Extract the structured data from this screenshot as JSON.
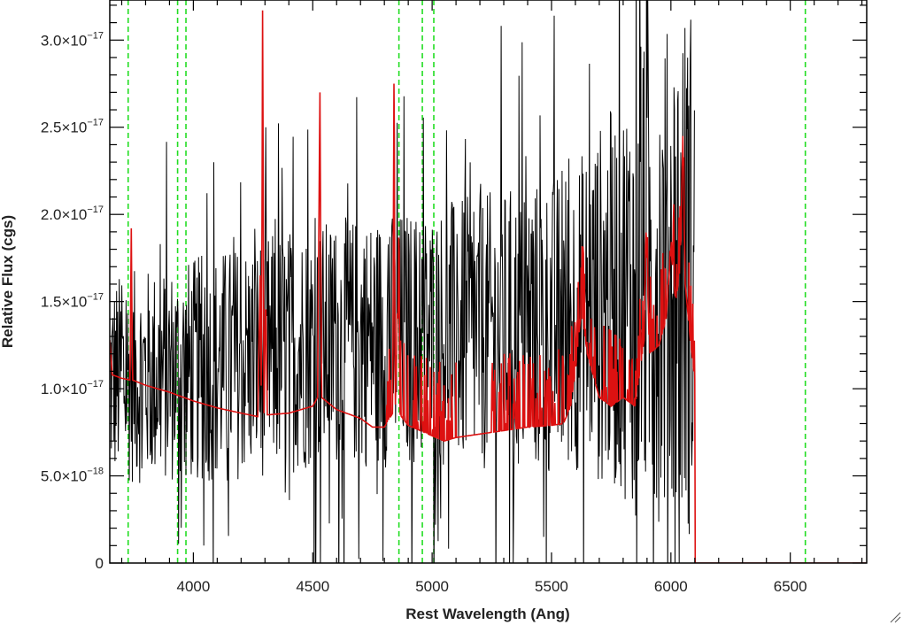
{
  "chart_data": {
    "type": "line",
    "xlabel": "Rest Wavelength (Ang)",
    "ylabel": "Relative Flux (cgs)",
    "xlim": [
      3650,
      6820
    ],
    "ylim": [
      0,
      3.23e-17
    ],
    "x_ticks": [
      4000,
      4500,
      5000,
      5500,
      6000,
      6500
    ],
    "x_tick_labels": [
      "4000",
      "4500",
      "5000",
      "5500",
      "6000",
      "6500"
    ],
    "y_ticks": [
      {
        "value": 0,
        "mantissa": "0",
        "exponent": ""
      },
      {
        "value": 5e-18,
        "mantissa": "5.0×10",
        "exponent": "−18"
      },
      {
        "value": 1e-17,
        "mantissa": "1.0×10",
        "exponent": "−17"
      },
      {
        "value": 1.5e-17,
        "mantissa": "1.5×10",
        "exponent": "−17"
      },
      {
        "value": 2e-17,
        "mantissa": "2.0×10",
        "exponent": "−17"
      },
      {
        "value": 2.5e-17,
        "mantissa": "2.5×10",
        "exponent": "−17"
      },
      {
        "value": 3e-17,
        "mantissa": "3.0×10",
        "exponent": "−17"
      }
    ],
    "series": [
      {
        "color": "#000000",
        "style": "noisy observed spectrum",
        "x_range": [
          3650,
          6100
        ],
        "continuum": [
          [
            3650,
            1.05e-17
          ],
          [
            4000,
            1.1e-17
          ],
          [
            4500,
            1.25e-17
          ],
          [
            5000,
            1.3e-17
          ],
          [
            5500,
            1.35e-17
          ],
          [
            5800,
            1.55e-17
          ],
          [
            6100,
            1.7e-17
          ]
        ],
        "noise_amplitude": [
          [
            3650,
            6e-18
          ],
          [
            4300,
            7e-18
          ],
          [
            5000,
            7.5e-18
          ],
          [
            5600,
            9e-18
          ],
          [
            6100,
            1.6e-17
          ]
        ]
      },
      {
        "color": "#dd1111",
        "style": "model / sky spectrum",
        "points": [
          [
            3650,
            1.28e-17
          ],
          [
            3660,
            1.08e-17
          ],
          [
            3700,
            1.06e-17
          ],
          [
            3735,
            1.05e-17
          ],
          [
            3740,
            1.92e-17
          ],
          [
            3745,
            1.05e-17
          ],
          [
            3800,
            1.02e-17
          ],
          [
            3900,
            9.8e-18
          ],
          [
            4000,
            9.3e-18
          ],
          [
            4100,
            8.9e-18
          ],
          [
            4200,
            8.6e-18
          ],
          [
            4270,
            8.4e-18
          ],
          [
            4280,
            1.65e-17
          ],
          [
            4285,
            8.6e-18
          ],
          [
            4290,
            3.17e-17
          ],
          [
            4296,
            8.6e-18
          ],
          [
            4303,
            1.55e-17
          ],
          [
            4310,
            8.5e-18
          ],
          [
            4400,
            8.6e-18
          ],
          [
            4500,
            9e-18
          ],
          [
            4520,
            9.5e-18
          ],
          [
            4530,
            2.7e-17
          ],
          [
            4537,
            9.5e-18
          ],
          [
            4600,
            8.8e-18
          ],
          [
            4700,
            8.3e-18
          ],
          [
            4750,
            7.8e-18
          ],
          [
            4800,
            7.8e-18
          ],
          [
            4835,
            8.6e-18
          ],
          [
            4840,
            2.75e-17
          ],
          [
            4845,
            8.6e-18
          ],
          [
            4860,
            1.6e-17
          ],
          [
            4866,
            8.5e-18
          ],
          [
            4900,
            7.9e-18
          ],
          [
            4950,
            7.6e-18
          ],
          [
            5000,
            7.3e-18
          ],
          [
            5050,
            7e-18
          ],
          [
            5100,
            7.2e-18
          ],
          [
            5200,
            7.4e-18
          ],
          [
            5300,
            7.6e-18
          ],
          [
            5400,
            7.8e-18
          ],
          [
            5500,
            7.9e-18
          ],
          [
            5550,
            8e-18
          ],
          [
            5580,
            9e-18
          ],
          [
            5600,
            1.1e-17
          ],
          [
            5625,
            1.45e-17
          ],
          [
            5650,
            1.2e-17
          ],
          [
            5700,
            9.5e-18
          ],
          [
            5750,
            9e-18
          ],
          [
            5800,
            9.5e-18
          ],
          [
            5850,
            9e-18
          ],
          [
            5890,
            1.3e-17
          ],
          [
            5900,
            1.75e-17
          ],
          [
            5910,
            1.2e-17
          ],
          [
            5950,
            1.25e-17
          ],
          [
            5980,
            1.4e-17
          ],
          [
            6000,
            1.8e-17
          ],
          [
            6020,
            1.5e-17
          ],
          [
            6040,
            1.7e-17
          ],
          [
            6050,
            2.45e-17
          ],
          [
            6060,
            1.6e-17
          ],
          [
            6080,
            1.3e-17
          ],
          [
            6100,
            1.05e-17
          ],
          [
            6101,
            0
          ],
          [
            6820,
            0
          ]
        ],
        "extra_noise_ranges": [
          [
            4800,
            5100
          ],
          [
            5250,
            5560
          ],
          [
            5560,
            6100
          ]
        ]
      }
    ],
    "reference_lines": {
      "color": "#22dd22",
      "style": "dashed",
      "x": [
        3727,
        3934,
        3969,
        4861,
        4959,
        5007,
        6563
      ]
    }
  }
}
